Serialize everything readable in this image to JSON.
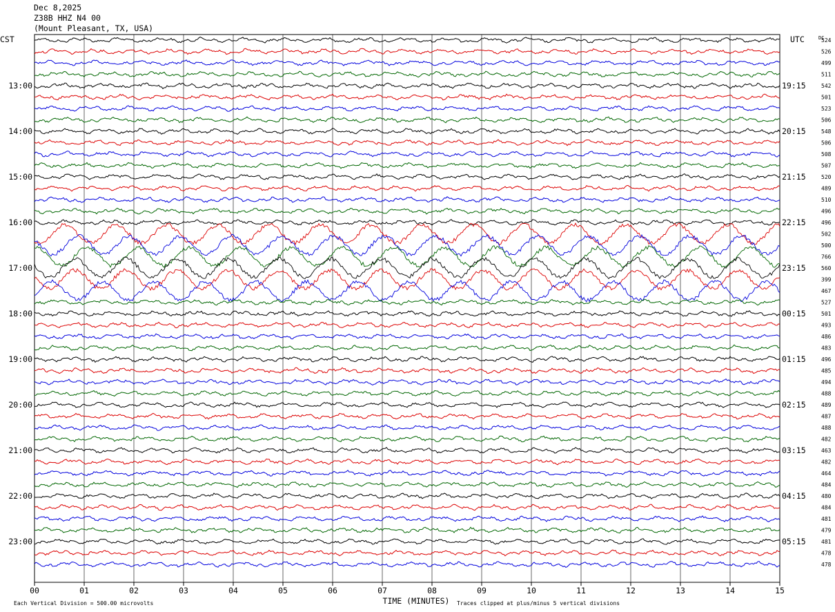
{
  "header": {
    "date": "Dec 8,2025",
    "station": "Z38B HHZ N4 00",
    "location": "(Mount Pleasant, TX, USA)"
  },
  "chart_data": {
    "type": "line",
    "title": "Z38B HHZ N4 00",
    "left_axis_label": "CST",
    "right_axis_label": "UTC",
    "dc_label": "DC",
    "xlabel": "TIME (MINUTES)",
    "xlim": [
      0,
      15
    ],
    "x_ticks": [
      "00",
      "01",
      "02",
      "03",
      "04",
      "05",
      "06",
      "07",
      "08",
      "09",
      "10",
      "11",
      "12",
      "13",
      "14",
      "15"
    ],
    "trace_minutes": 15,
    "left_hour_labels": [
      {
        "trace": 4,
        "label": "13:00"
      },
      {
        "trace": 8,
        "label": "14:00"
      },
      {
        "trace": 12,
        "label": "15:00"
      },
      {
        "trace": 16,
        "label": "16:00"
      },
      {
        "trace": 20,
        "label": "17:00"
      },
      {
        "trace": 24,
        "label": "18:00"
      },
      {
        "trace": 28,
        "label": "19:00"
      },
      {
        "trace": 32,
        "label": "20:00"
      },
      {
        "trace": 36,
        "label": "21:00"
      },
      {
        "trace": 40,
        "label": "22:00"
      },
      {
        "trace": 44,
        "label": "23:00"
      }
    ],
    "right_hour_labels": [
      {
        "trace": 4,
        "label": "19:15"
      },
      {
        "trace": 8,
        "label": "20:15"
      },
      {
        "trace": 12,
        "label": "21:15"
      },
      {
        "trace": 16,
        "label": "22:15"
      },
      {
        "trace": 20,
        "label": "23:15"
      },
      {
        "trace": 24,
        "label": "00:15"
      },
      {
        "trace": 28,
        "label": "01:15"
      },
      {
        "trace": 32,
        "label": "02:15"
      },
      {
        "trace": 36,
        "label": "03:15"
      },
      {
        "trace": 40,
        "label": "04:15"
      },
      {
        "trace": 44,
        "label": "05:15"
      }
    ],
    "trace_colors": [
      "#000000",
      "#dd0000",
      "#0000dd",
      "#006600"
    ],
    "dc_offsets": [
      524,
      526,
      499,
      511,
      542,
      501,
      523,
      506,
      548,
      506,
      508,
      507,
      520,
      489,
      510,
      496,
      496,
      502,
      500,
      766,
      560,
      399,
      467,
      527,
      501,
      493,
      486,
      483,
      496,
      485,
      494,
      488,
      489,
      487,
      488,
      482,
      463,
      482,
      464,
      484,
      480,
      484,
      481,
      479,
      481,
      478,
      478
    ],
    "grid": true,
    "footer_left": "Each Vertical Division =  500.00 microvolts",
    "footer_right": "Traces clipped at plus/minus 5 vertical divisions"
  }
}
